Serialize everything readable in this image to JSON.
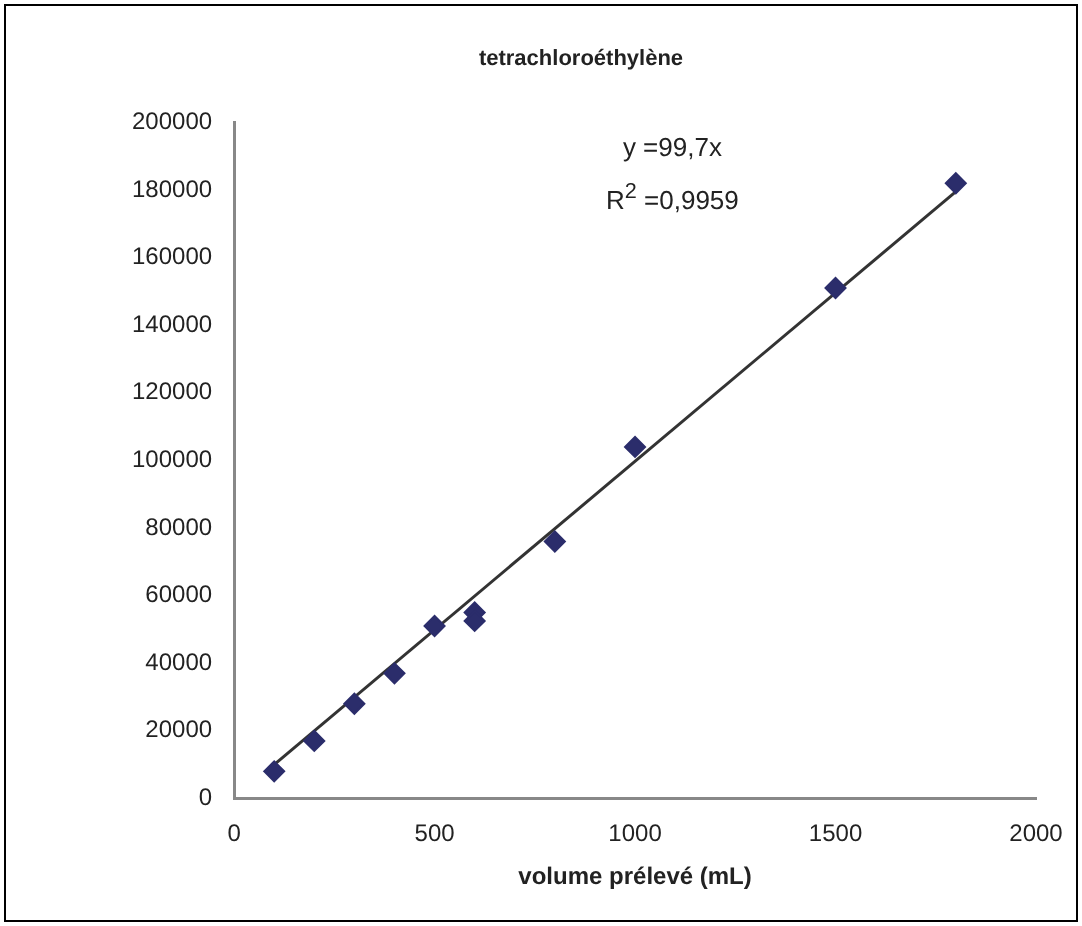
{
  "chart_data": {
    "type": "scatter",
    "title": "tetrachloroéthylène",
    "xlabel": "volume prélevé (mL)",
    "x": [
      100,
      200,
      300,
      400,
      500,
      600,
      600,
      800,
      1000,
      1500,
      1800
    ],
    "series": [
      {
        "type": "scatter",
        "color": "#2b2d6b",
        "marker": "diamond",
        "values": [
          8000,
          17000,
          28000,
          37000,
          51000,
          55000,
          52500,
          76000,
          104000,
          151000,
          182000
        ]
      },
      {
        "type": "line",
        "color": "#333333",
        "marker": "none",
        "x": [
          100,
          1800
        ],
        "values": [
          10000,
          179500
        ]
      }
    ],
    "xlim": [
      0,
      2000
    ],
    "xticks": [
      0,
      500,
      1000,
      1500,
      2000
    ],
    "ylim": [
      0,
      200000
    ],
    "yticks": [
      0,
      20000,
      40000,
      60000,
      80000,
      100000,
      120000,
      140000,
      160000,
      180000,
      200000
    ],
    "grid": false,
    "legend": false,
    "annotations": [
      "y =99,7x",
      "R$^{2}$ =0,9959"
    ]
  }
}
